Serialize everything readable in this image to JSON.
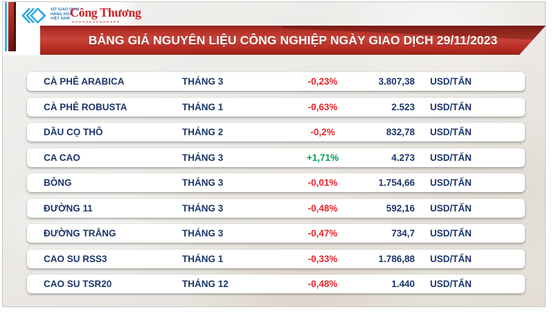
{
  "header": {
    "mxv": {
      "line1": "SỞ GIAO DỊCH",
      "line2": "HÀNG HÓA",
      "line3": "VIỆT NAM"
    },
    "congthuong_wordmark": "Công Thương",
    "banner_title": "BẢNG GIÁ NGUYÊN LIỆU CÔNG NGHIỆP NGÀY GIAO DỊCH 29/11/2023"
  },
  "table": {
    "rows": [
      {
        "name": "CÀ PHÊ ARABICA",
        "month": "THÁNG 3",
        "change": "-0,23%",
        "direction": "down",
        "price": "3.807,38",
        "unit": "USD/TẤN"
      },
      {
        "name": "CÀ PHÊ ROBUSTA",
        "month": "THÁNG 1",
        "change": "-0,63%",
        "direction": "down",
        "price": "2.523",
        "unit": "USD/TẤN"
      },
      {
        "name": "DẦU CỌ THÔ",
        "month": "THÁNG 2",
        "change": "-0,2%",
        "direction": "down",
        "price": "832,78",
        "unit": "USD/TẤN"
      },
      {
        "name": "CA CAO",
        "month": "THÁNG 3",
        "change": "+1,71%",
        "direction": "up",
        "price": "4.273",
        "unit": "USD/TẤN"
      },
      {
        "name": "BÔNG",
        "month": "THÁNG 3",
        "change": "-0,01%",
        "direction": "down",
        "price": "1.754,66",
        "unit": "USD/TẤN"
      },
      {
        "name": "ĐƯỜNG 11",
        "month": "THÁNG 3",
        "change": "-0,48%",
        "direction": "down",
        "price": "592,16",
        "unit": "USD/TẤN"
      },
      {
        "name": "ĐƯỜNG TRẮNG",
        "month": "THÁNG 3",
        "change": "-0,47%",
        "direction": "down",
        "price": "734,7",
        "unit": "USD/TẤN"
      },
      {
        "name": "CAO SU RSS3",
        "month": "THÁNG 1",
        "change": "-0,33%",
        "direction": "down",
        "price": "1.786,88",
        "unit": "USD/TẤN"
      },
      {
        "name": "CAO SU TSR20",
        "month": "THÁNG 12",
        "change": "-0,48%",
        "direction": "down",
        "price": "1.440",
        "unit": "USD/TẤN"
      }
    ]
  },
  "chart_data": {
    "type": "table",
    "title": "BẢNG GIÁ NGUYÊN LIỆU CÔNG NGHIỆP NGÀY GIAO DỊCH 29/11/2023",
    "columns": [
      "commodity",
      "contract_month",
      "percent_change",
      "price",
      "unit"
    ],
    "rows": [
      [
        "CÀ PHÊ ARABICA",
        "THÁNG 3",
        "-0,23%",
        "3.807,38",
        "USD/TẤN"
      ],
      [
        "CÀ PHÊ ROBUSTA",
        "THÁNG 1",
        "-0,63%",
        "2.523",
        "USD/TẤN"
      ],
      [
        "DẦU CỌ THÔ",
        "THÁNG 2",
        "-0,2%",
        "832,78",
        "USD/TẤN"
      ],
      [
        "CA CAO",
        "THÁNG 3",
        "+1,71%",
        "4.273",
        "USD/TẤN"
      ],
      [
        "BÔNG",
        "THÁNG 3",
        "-0,01%",
        "1.754,66",
        "USD/TẤN"
      ],
      [
        "ĐƯỜNG 11",
        "THÁNG 3",
        "-0,48%",
        "592,16",
        "USD/TẤN"
      ],
      [
        "ĐƯỜNG TRẮNG",
        "THÁNG 3",
        "-0,47%",
        "734,7",
        "USD/TẤN"
      ],
      [
        "CAO SU RSS3",
        "THÁNG 1",
        "-0,33%",
        "1.786,88",
        "USD/TẤN"
      ],
      [
        "CAO SU TSR20",
        "THÁNG 12",
        "-0,48%",
        "1.440",
        "USD/TẤN"
      ]
    ],
    "percent_change_values": [
      -0.23,
      -0.63,
      -0.2,
      1.71,
      -0.01,
      -0.48,
      -0.47,
      -0.33,
      -0.48
    ],
    "price_values": [
      3807.38,
      2523,
      832.78,
      4273,
      1754.66,
      592.16,
      734.7,
      1786.88,
      1440
    ]
  },
  "colors": {
    "banner_red": "#c8433a",
    "accent_cyan": "#35b4e8",
    "text_navy": "#1a3569",
    "down_red": "#e8232a",
    "up_green": "#00a04d",
    "logo_blue": "#2fa8e1",
    "wordmark_red": "#ce2027"
  }
}
